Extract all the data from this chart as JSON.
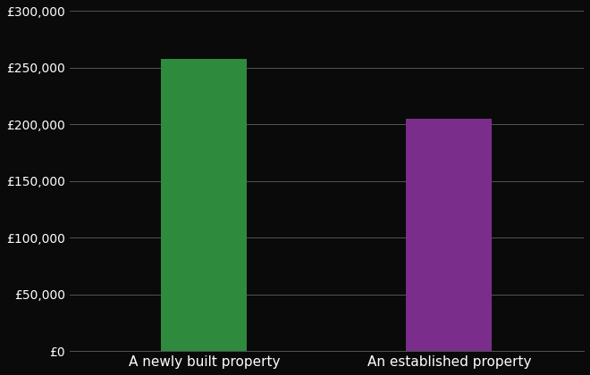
{
  "categories": [
    "A newly built property",
    "An established property"
  ],
  "values": [
    258000,
    205000
  ],
  "bar_colors": [
    "#2e8b3e",
    "#7b2d8b"
  ],
  "background_color": "#0a0a0a",
  "text_color": "#ffffff",
  "grid_color": "#555555",
  "ylim": [
    0,
    300000
  ],
  "yticks": [
    0,
    50000,
    100000,
    150000,
    200000,
    250000,
    300000
  ],
  "bar_width": 0.35,
  "xlabel": "",
  "ylabel": "",
  "tick_fontsize": 10,
  "xlabel_fontsize": 11
}
